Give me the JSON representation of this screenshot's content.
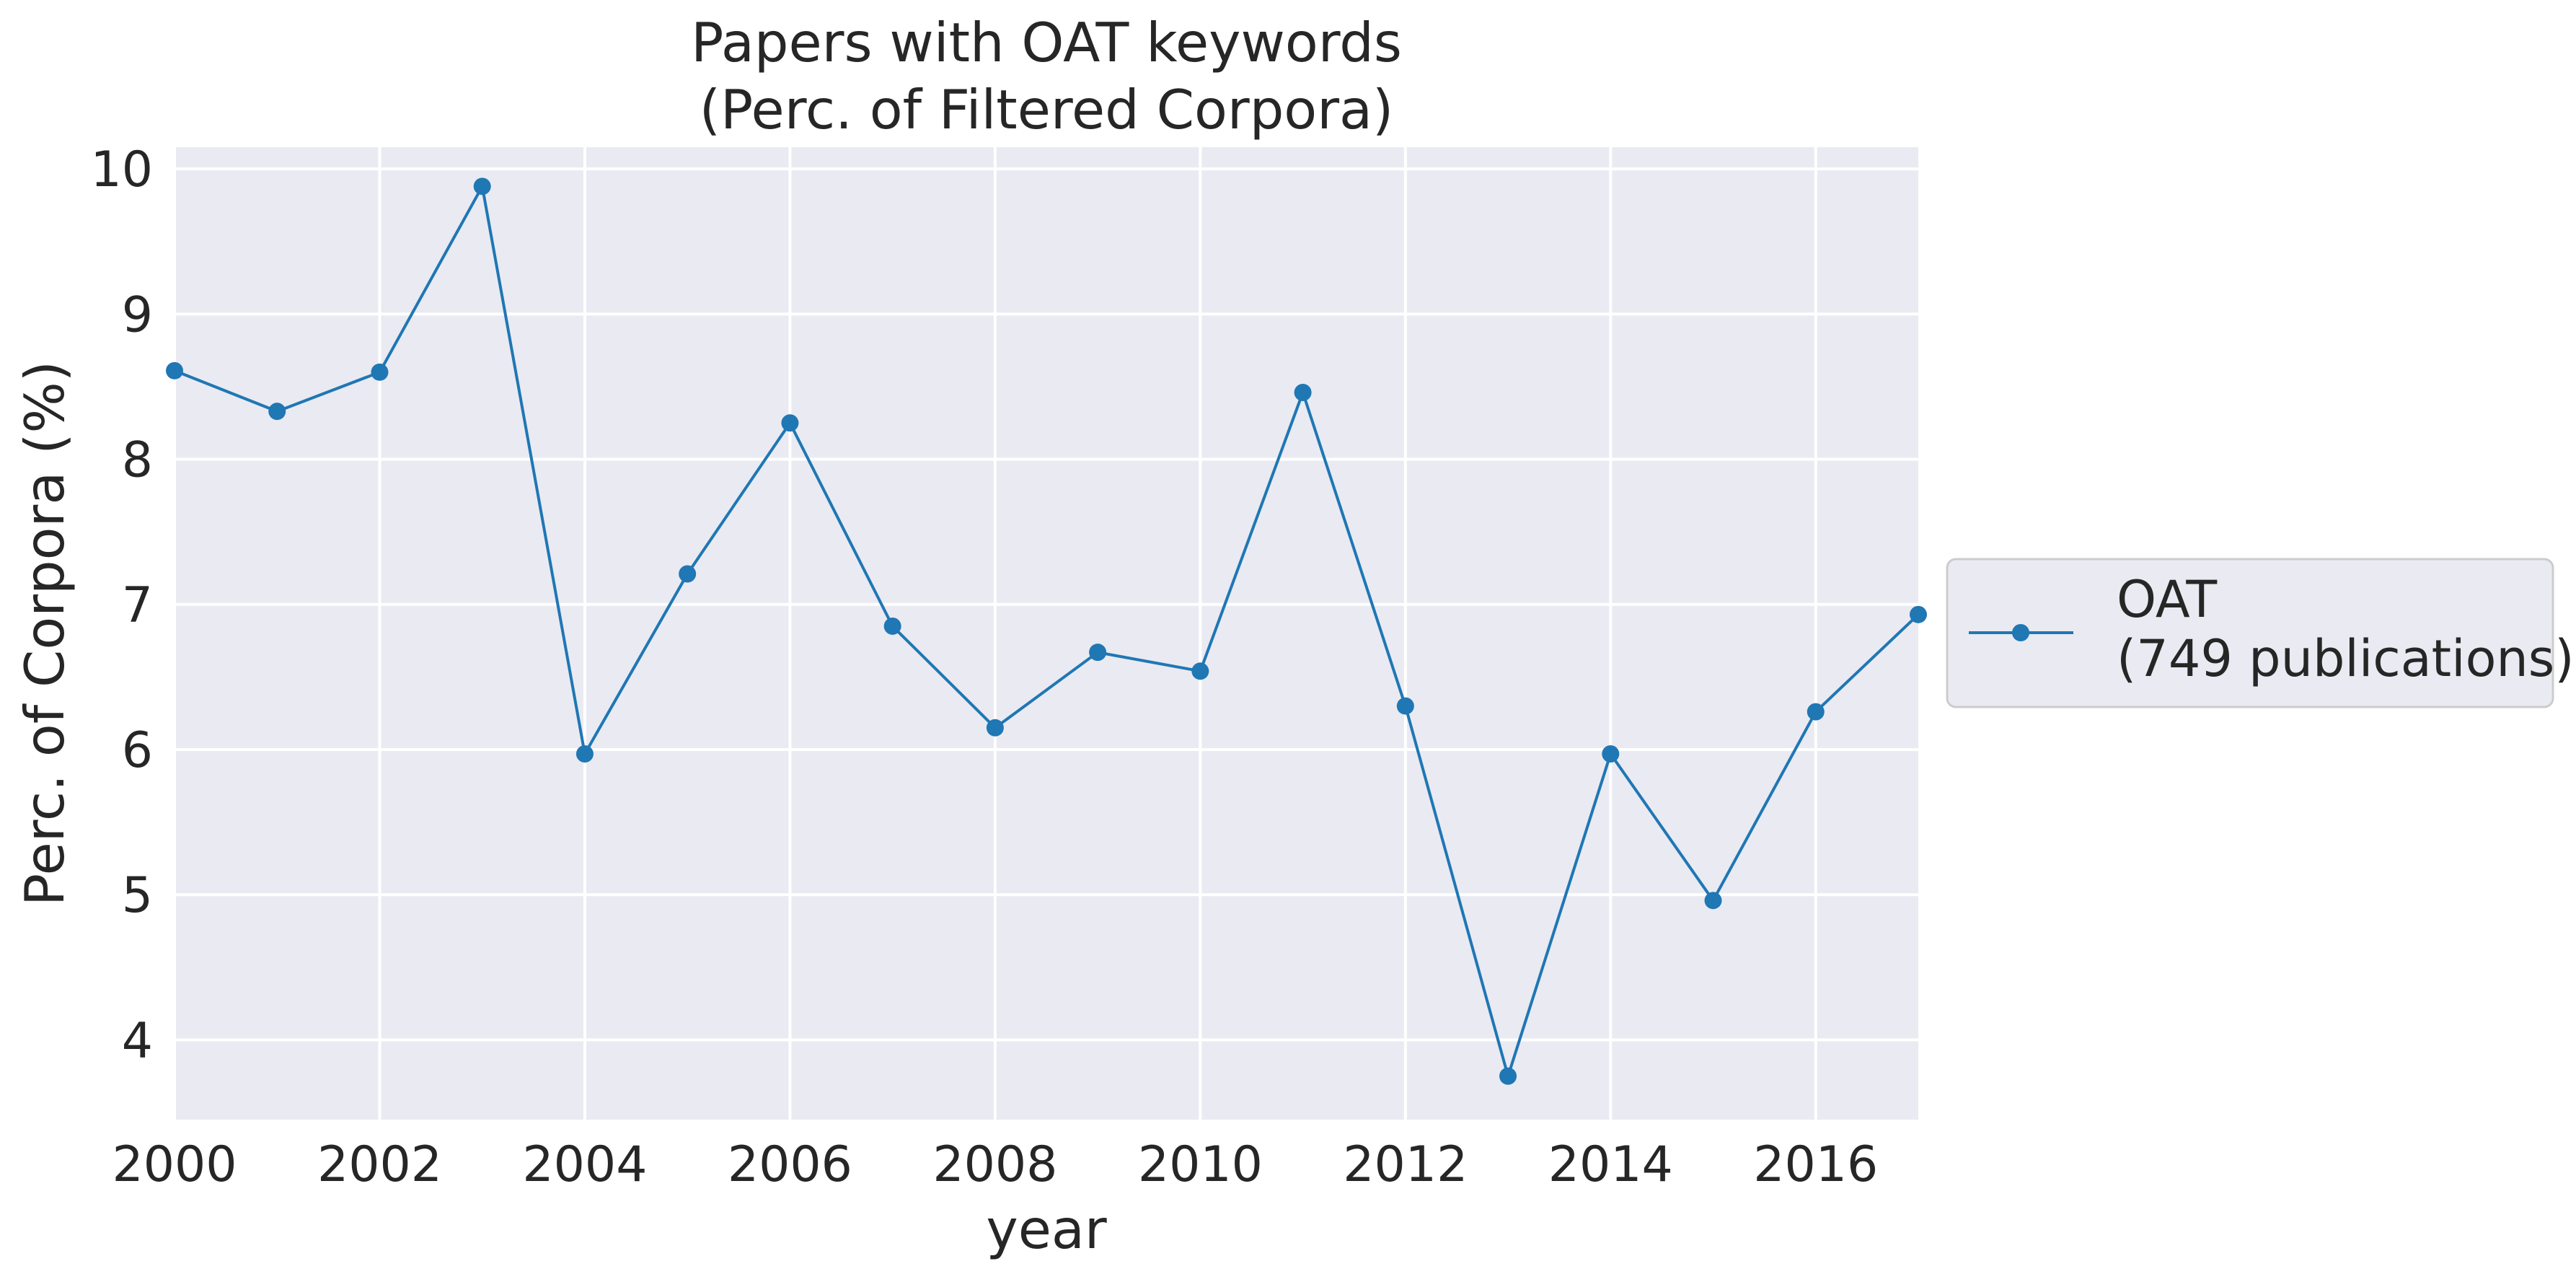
{
  "chart_data": {
    "type": "line",
    "title": [
      "Papers with OAT keywords",
      "(Perc. of Filtered Corpora)"
    ],
    "xlabel": "year",
    "ylabel": "Perc. of Corpora (%)",
    "xlim": [
      2000,
      2017
    ],
    "ylim": [
      3.45,
      10.15
    ],
    "xticks": [
      2000,
      2002,
      2004,
      2006,
      2008,
      2010,
      2012,
      2014,
      2016
    ],
    "yticks": [
      4,
      5,
      6,
      7,
      8,
      9,
      10
    ],
    "grid": true,
    "legend_position": "right",
    "colors": {
      "background": "#eaeaf2",
      "grid": "#ffffff",
      "series": "#1f77b4",
      "text": "#262626"
    },
    "series": [
      {
        "name": [
          "OAT",
          "(749 publications)"
        ],
        "marker": "circle",
        "x": [
          2000,
          2001,
          2002,
          2003,
          2004,
          2005,
          2006,
          2007,
          2008,
          2009,
          2010,
          2011,
          2012,
          2013,
          2014,
          2015,
          2016,
          2017
        ],
        "y": [
          8.61,
          8.33,
          8.6,
          9.88,
          5.97,
          7.21,
          8.25,
          6.85,
          6.15,
          6.67,
          6.54,
          8.46,
          6.3,
          3.75,
          5.97,
          4.96,
          6.26,
          6.93
        ]
      }
    ]
  }
}
